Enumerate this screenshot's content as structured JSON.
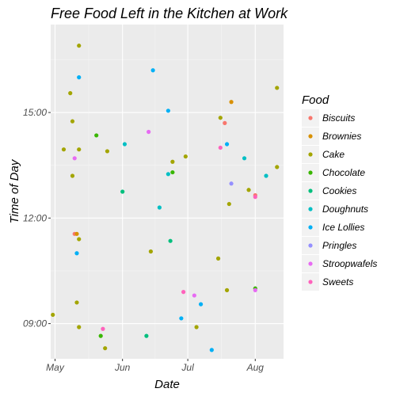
{
  "chart_data": {
    "type": "scatter",
    "title": "Free Food Left in the Kitchen at Work",
    "xlabel": "Date",
    "ylabel": "Time of Day",
    "x_axis_type": "date",
    "xlim": [
      "2018-04-29",
      "2018-08-14"
    ],
    "ylim": [
      8.0,
      17.5
    ],
    "x_ticks": [
      {
        "value": "2018-05-01",
        "label": "May"
      },
      {
        "value": "2018-06-01",
        "label": "Jun"
      },
      {
        "value": "2018-07-01",
        "label": "Jul"
      },
      {
        "value": "2018-08-01",
        "label": "Aug"
      }
    ],
    "y_ticks": [
      {
        "value": 9,
        "label": "09:00"
      },
      {
        "value": 12,
        "label": "12:00"
      },
      {
        "value": 15,
        "label": "15:00"
      }
    ],
    "grid": true,
    "background": "#ebebeb",
    "legend": {
      "title": "Food",
      "position": "right"
    },
    "series": [
      {
        "name": "Biscuits",
        "color": "#F8766D",
        "points": [
          {
            "x": "2018-05-10",
            "y": 11.55
          },
          {
            "x": "2018-07-18",
            "y": 14.7
          },
          {
            "x": "2018-08-01",
            "y": 12.65
          }
        ]
      },
      {
        "name": "Brownies",
        "color": "#D89000",
        "points": [
          {
            "x": "2018-05-11",
            "y": 11.55
          },
          {
            "x": "2018-07-21",
            "y": 15.3
          }
        ]
      },
      {
        "name": "Cake",
        "color": "#A3A500",
        "points": [
          {
            "x": "2018-05-12",
            "y": 16.9
          },
          {
            "x": "2018-05-08",
            "y": 15.55
          },
          {
            "x": "2018-05-09",
            "y": 14.75
          },
          {
            "x": "2018-05-05",
            "y": 13.95
          },
          {
            "x": "2018-05-12",
            "y": 13.95
          },
          {
            "x": "2018-05-09",
            "y": 13.2
          },
          {
            "x": "2018-05-12",
            "y": 11.4
          },
          {
            "x": "2018-05-11",
            "y": 9.6
          },
          {
            "x": "2018-05-12",
            "y": 8.9
          },
          {
            "x": "2018-04-30",
            "y": 9.25
          },
          {
            "x": "2018-05-25",
            "y": 13.9
          },
          {
            "x": "2018-05-24",
            "y": 8.3
          },
          {
            "x": "2018-06-14",
            "y": 11.05
          },
          {
            "x": "2018-06-24",
            "y": 13.6
          },
          {
            "x": "2018-06-30",
            "y": 13.75
          },
          {
            "x": "2018-07-05",
            "y": 8.9
          },
          {
            "x": "2018-07-15",
            "y": 10.85
          },
          {
            "x": "2018-07-16",
            "y": 14.85
          },
          {
            "x": "2018-07-19",
            "y": 9.95
          },
          {
            "x": "2018-07-20",
            "y": 12.4
          },
          {
            "x": "2018-07-29",
            "y": 12.8
          },
          {
            "x": "2018-08-11",
            "y": 15.7
          },
          {
            "x": "2018-08-11",
            "y": 13.45
          }
        ]
      },
      {
        "name": "Chocolate",
        "color": "#39B600",
        "points": [
          {
            "x": "2018-05-20",
            "y": 14.35
          },
          {
            "x": "2018-05-22",
            "y": 8.65
          },
          {
            "x": "2018-06-24",
            "y": 13.3
          },
          {
            "x": "2018-08-01",
            "y": 10.0
          }
        ]
      },
      {
        "name": "Cookies",
        "color": "#00BF7D",
        "points": [
          {
            "x": "2018-06-01",
            "y": 12.75
          },
          {
            "x": "2018-06-12",
            "y": 8.65
          },
          {
            "x": "2018-06-23",
            "y": 11.35
          }
        ]
      },
      {
        "name": "Doughnuts",
        "color": "#00BFC4",
        "points": [
          {
            "x": "2018-06-02",
            "y": 14.1
          },
          {
            "x": "2018-06-18",
            "y": 12.3
          },
          {
            "x": "2018-06-22",
            "y": 13.25
          },
          {
            "x": "2018-07-27",
            "y": 13.7
          },
          {
            "x": "2018-08-06",
            "y": 13.2
          }
        ]
      },
      {
        "name": "Ice Lollies",
        "color": "#00B0F6",
        "points": [
          {
            "x": "2018-05-12",
            "y": 16.0
          },
          {
            "x": "2018-05-11",
            "y": 11.0
          },
          {
            "x": "2018-06-15",
            "y": 16.2
          },
          {
            "x": "2018-06-22",
            "y": 15.05
          },
          {
            "x": "2018-06-28",
            "y": 9.15
          },
          {
            "x": "2018-07-07",
            "y": 9.55
          },
          {
            "x": "2018-07-12",
            "y": 8.25
          },
          {
            "x": "2018-07-19",
            "y": 14.1
          }
        ]
      },
      {
        "name": "Pringles",
        "color": "#9590FF",
        "points": [
          {
            "x": "2018-07-21",
            "y": 12.98
          }
        ]
      },
      {
        "name": "Stroopwafels",
        "color": "#E76BF3",
        "points": [
          {
            "x": "2018-05-10",
            "y": 13.7
          },
          {
            "x": "2018-06-13",
            "y": 14.45
          },
          {
            "x": "2018-07-04",
            "y": 9.8
          },
          {
            "x": "2018-08-01",
            "y": 9.95
          }
        ]
      },
      {
        "name": "Sweets",
        "color": "#FF62BC",
        "points": [
          {
            "x": "2018-05-23",
            "y": 8.85
          },
          {
            "x": "2018-06-29",
            "y": 9.9
          },
          {
            "x": "2018-07-16",
            "y": 14.0
          },
          {
            "x": "2018-08-01",
            "y": 12.6
          }
        ]
      }
    ]
  }
}
